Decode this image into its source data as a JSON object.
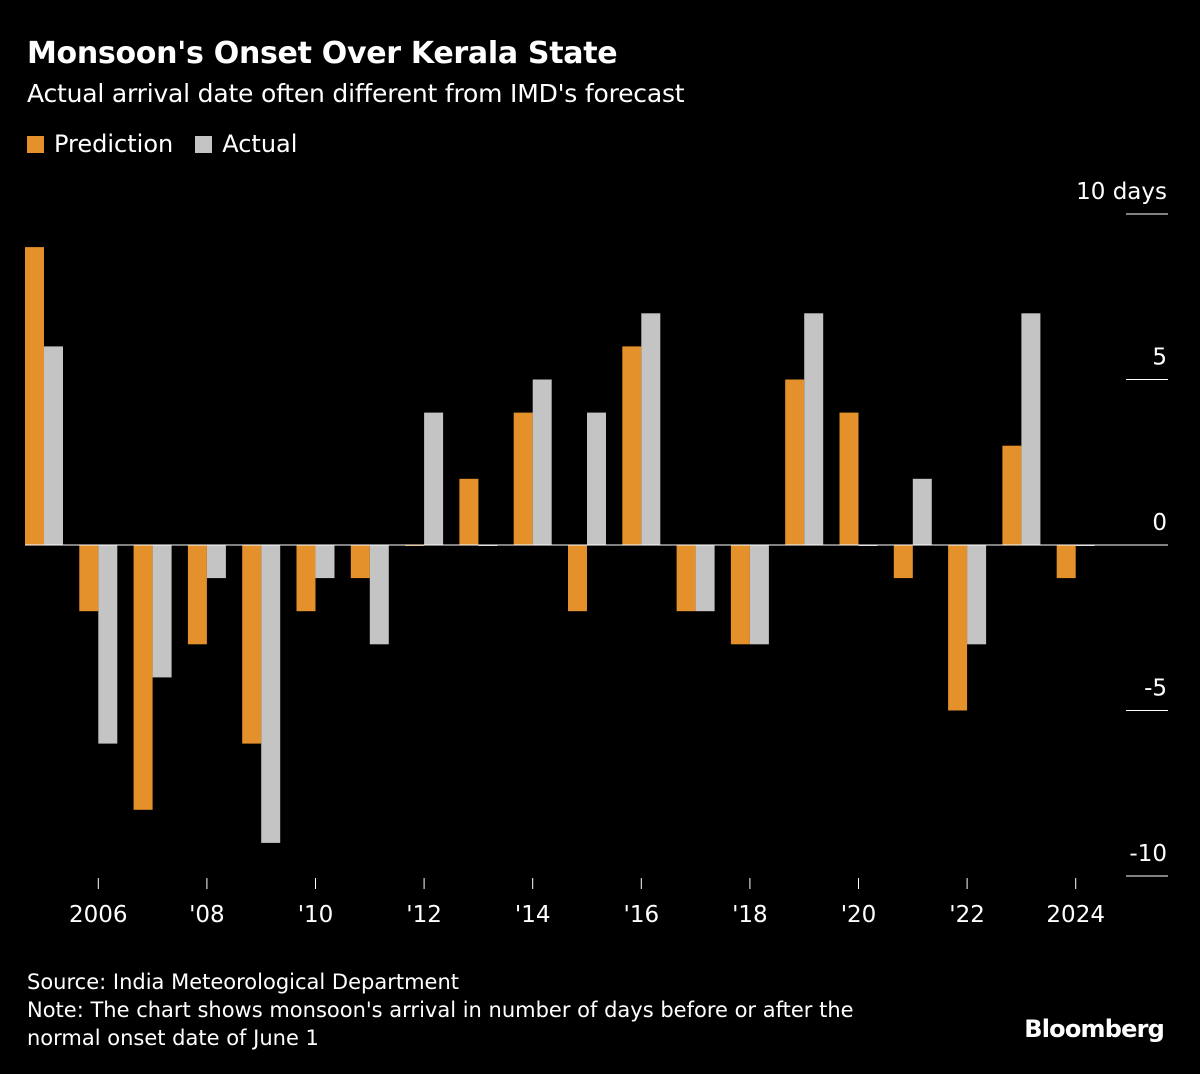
{
  "header": {
    "title": "Monsoon's Onset Over Kerala State",
    "subtitle": "Actual arrival date often different from IMD's forecast"
  },
  "legend": {
    "prediction": "Prediction",
    "actual": "Actual"
  },
  "colors": {
    "prediction": "#e5912b",
    "actual": "#c4c4c4",
    "background": "#000000",
    "text": "#ffffff"
  },
  "chart_data": {
    "type": "bar",
    "title": "Monsoon's Onset Over Kerala State",
    "subtitle": "Actual arrival date often different from IMD's forecast",
    "xlabel": "",
    "ylabel": "days",
    "ylim": [
      -10,
      10
    ],
    "y_ticks": [
      10,
      5,
      0,
      -5,
      -10
    ],
    "y_tick_labels": [
      "10 days",
      "5",
      "0",
      "-5",
      "-10"
    ],
    "x": [
      2005,
      2006,
      2007,
      2008,
      2009,
      2010,
      2011,
      2012,
      2013,
      2014,
      2015,
      2016,
      2017,
      2018,
      2019,
      2020,
      2021,
      2022,
      2023,
      2024
    ],
    "x_ticks": [
      2006,
      2008,
      2010,
      2012,
      2014,
      2016,
      2018,
      2020,
      2022,
      2024
    ],
    "x_tick_labels": [
      "2006",
      "'08",
      "'10",
      "'12",
      "'14",
      "'16",
      "'18",
      "'20",
      "'22",
      "2024"
    ],
    "legend_position": "top-left",
    "series": [
      {
        "name": "Prediction",
        "values": [
          9,
          -2,
          -8,
          -3,
          -6,
          -2,
          -1,
          0,
          2,
          4,
          -2,
          6,
          -2,
          -3,
          5,
          4,
          -1,
          -5,
          3,
          -1
        ]
      },
      {
        "name": "Actual",
        "values": [
          6,
          -6,
          -4,
          -1,
          -9,
          -1,
          -3,
          4,
          0,
          5,
          4,
          7,
          -2,
          -3,
          7,
          0,
          2,
          -3,
          7,
          0
        ]
      }
    ]
  },
  "footer": {
    "source": "Source: India Meteorological Department",
    "note_line1": "Note: The chart shows monsoon's arrival in number of days before or after the",
    "note_line2": "normal onset date of June 1"
  },
  "brand": "Bloomberg"
}
